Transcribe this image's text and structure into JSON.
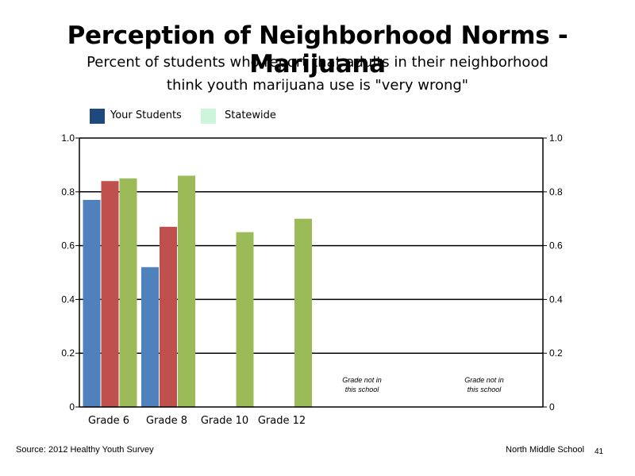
{
  "title": "Perception of Neighborhood Norms - Marijuana",
  "subtitle_line1": "Percent of students who report that adults in their neighborhood",
  "subtitle_line2": "think youth marijuana use is \"very wrong\"",
  "legend": [
    {
      "label": "Your Students",
      "color": "#1f497d"
    },
    {
      "label": "Statewide",
      "color": "#ccf5dc"
    }
  ],
  "chart_data": {
    "type": "bar",
    "categories": [
      "Grade 6",
      "Grade 8",
      "Grade 10",
      "Grade 12"
    ],
    "series": [
      {
        "color": "#4f81bd",
        "values": [
          0.77,
          0.52,
          null,
          null
        ]
      },
      {
        "color": "#c0504d",
        "values": [
          0.84,
          0.67,
          null,
          null
        ]
      },
      {
        "color": "#9bbb59",
        "values": [
          0.85,
          0.86,
          0.65,
          0.7
        ]
      }
    ],
    "ylim": [
      0,
      1.0
    ],
    "yticks": [
      "0",
      "0.2",
      "0.4",
      "0.6",
      "0.8",
      "1.0"
    ],
    "right_yticks": [
      "0",
      "0.2",
      "0.4",
      "0.6",
      "0.8",
      "1.0"
    ],
    "grid": true,
    "notes": [
      {
        "line1": "Grade not in",
        "line2": "this school"
      },
      {
        "line1": "Grade not in",
        "line2": "this school"
      }
    ]
  },
  "footer": {
    "source": "Source: 2012 Healthy Youth Survey",
    "school": "North Middle School",
    "page": "41"
  }
}
